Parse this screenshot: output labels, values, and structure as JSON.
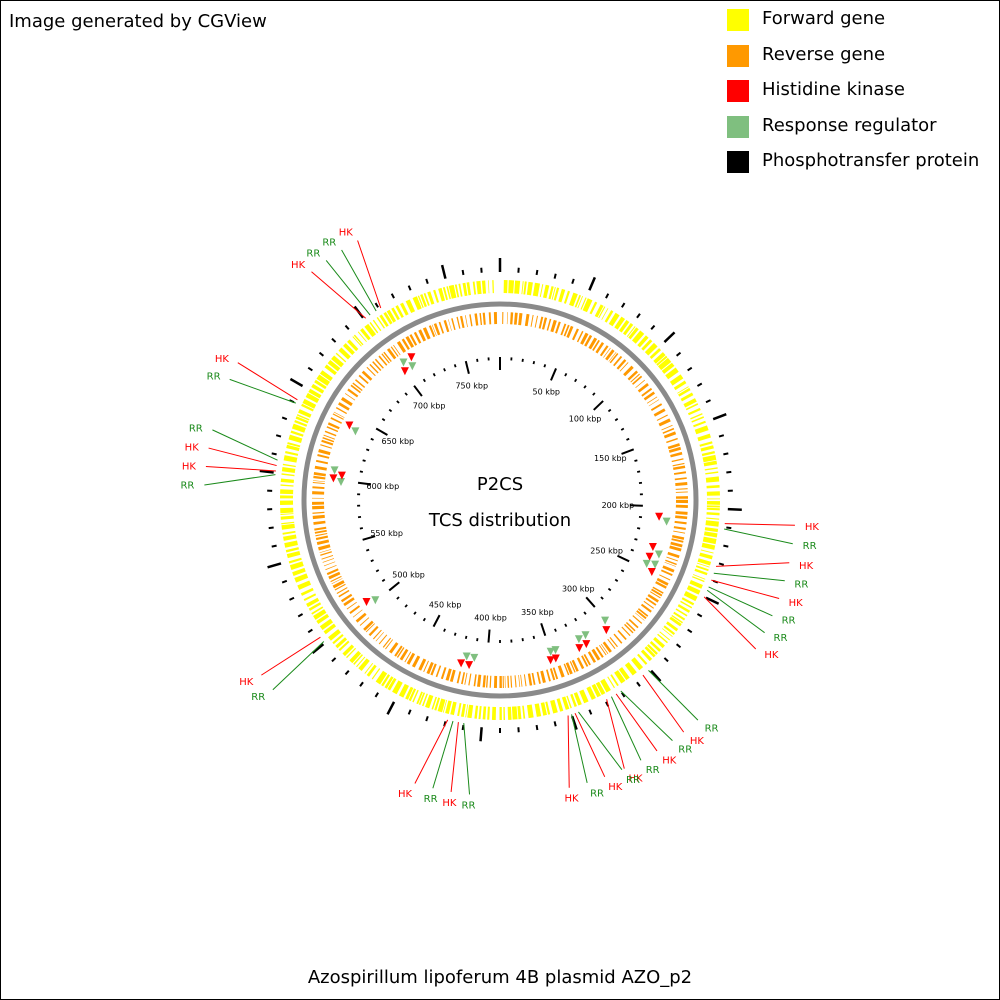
{
  "credit": "Image generated by CGView",
  "legend": [
    {
      "label": "Forward gene",
      "color": "#ffff00"
    },
    {
      "label": "Reverse gene",
      "color": "#ff9900"
    },
    {
      "label": "Histidine kinase",
      "color": "#ff0000"
    },
    {
      "label": "Response regulator",
      "color": "#7fbf7f"
    },
    {
      "label": "Phosphotransfer protein",
      "color": "#000000"
    }
  ],
  "center_title": "P2CS",
  "center_subtitle": "TCS distribution",
  "caption": "Azospirillum lipoferum 4B plasmid AZO_p2",
  "map": {
    "sequence_length_kbp": 780,
    "tick_labels": [
      "50 kbp",
      "100 kbp",
      "150 kbp",
      "200 kbp",
      "250 kbp",
      "300 kbp",
      "350 kbp",
      "400 kbp",
      "450 kbp",
      "500 kbp",
      "550 kbp",
      "600 kbp",
      "650 kbp",
      "700 kbp",
      "750 kbp"
    ],
    "features": [
      {
        "type": "HK",
        "kbp": 208
      },
      {
        "type": "RR",
        "kbp": 211
      },
      {
        "type": "HK",
        "kbp": 232
      },
      {
        "type": "RR",
        "kbp": 236
      },
      {
        "type": "HK",
        "kbp": 240
      },
      {
        "type": "RR",
        "kbp": 244
      },
      {
        "type": "RR",
        "kbp": 246
      },
      {
        "type": "HK",
        "kbp": 250
      },
      {
        "type": "RR",
        "kbp": 301
      },
      {
        "type": "HK",
        "kbp": 305
      },
      {
        "type": "RR",
        "kbp": 320
      },
      {
        "type": "HK",
        "kbp": 323
      },
      {
        "type": "RR",
        "kbp": 326
      },
      {
        "type": "HK",
        "kbp": 329
      },
      {
        "type": "RR",
        "kbp": 346
      },
      {
        "type": "HK",
        "kbp": 348
      },
      {
        "type": "RR",
        "kbp": 350
      },
      {
        "type": "HK",
        "kbp": 352
      },
      {
        "type": "RR",
        "kbp": 410
      },
      {
        "type": "HK",
        "kbp": 413
      },
      {
        "type": "RR",
        "kbp": 416
      },
      {
        "type": "HK",
        "kbp": 419
      },
      {
        "type": "RR",
        "kbp": 501
      },
      {
        "type": "HK",
        "kbp": 504
      },
      {
        "type": "RR",
        "kbp": 599
      },
      {
        "type": "HK",
        "kbp": 601
      },
      {
        "type": "HK",
        "kbp": 604
      },
      {
        "type": "RR",
        "kbp": 607
      },
      {
        "type": "RR",
        "kbp": 640
      },
      {
        "type": "HK",
        "kbp": 642
      },
      {
        "type": "HK",
        "kbp": 701
      },
      {
        "type": "RR",
        "kbp": 704
      },
      {
        "type": "RR",
        "kbp": 708
      },
      {
        "type": "HK",
        "kbp": 711
      }
    ]
  }
}
